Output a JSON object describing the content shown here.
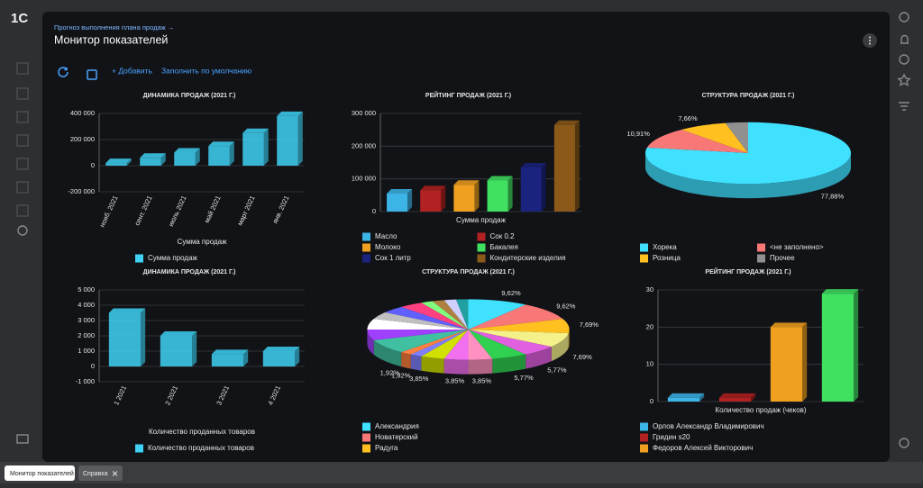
{
  "logo": "1С",
  "header": {
    "link": "Прогноз выполнения плана продаж →",
    "title": "Монитор показателей"
  },
  "toolbar": {
    "add": "+ Добавить",
    "fill": "Заполнить по умолчанию"
  },
  "tabs": [
    "Монитор показателей",
    "Справка"
  ],
  "panels": [
    {
      "type": "bar",
      "title": "ДИНАМИКА ПРОДАЖ (2021 Г.)",
      "categories": [
        "нояб. 2021",
        "сент. 2021",
        "июль 2021",
        "май 2021",
        "март 2021",
        "янв. 2021"
      ],
      "series": [
        {
          "name": "Сумма продаж",
          "color": "#3fd2f5",
          "values": [
            20000,
            60000,
            100000,
            150000,
            250000,
            380000
          ]
        }
      ],
      "ylim": [
        -200000,
        400000
      ],
      "yticks": [
        {
          "value": -200000,
          "label": "-200 000"
        },
        0,
        {
          "value": 200000,
          "label": "200 000"
        },
        {
          "value": 400000,
          "label": "400 000"
        }
      ],
      "xlabel": "Сумма продаж"
    },
    {
      "type": "bar",
      "title": "РЕЙТИНГ ПРОДАЖ (2021 Г.)",
      "categories": [
        "Масло",
        "Сок 0.2",
        "Молоко",
        "Бакалея",
        "Сок 1 литр",
        "Кондитерские изделия"
      ],
      "values": [
        55000,
        65000,
        82000,
        95000,
        135000,
        265000
      ],
      "colors": [
        "#3cb4e6",
        "#b22222",
        "#f0a020",
        "#40e060",
        "#1a237e",
        "#8b5a1a"
      ],
      "ylim": [
        0,
        300000
      ],
      "yticks": [
        0,
        {
          "value": 100000,
          "label": "100 000"
        },
        {
          "value": 200000,
          "label": "200 000"
        },
        {
          "value": 300000,
          "label": "300 000"
        }
      ],
      "xlabel": "Сумма продаж",
      "legend_columns": 2
    },
    {
      "type": "pie",
      "title": "СТРУКТУРА ПРОДАЖ (2021 Г.)",
      "categories": [
        "Хорека",
        "<не заполнено>",
        "Розница",
        "Прочее"
      ],
      "values": [
        77.88,
        10.91,
        7.66,
        3.55
      ],
      "value_labels": [
        "77,88%",
        "10,91%",
        "7,66%",
        null
      ],
      "colors": [
        "#40e0ff",
        "#f87878",
        "#ffc020",
        "#909090"
      ],
      "legend_columns": 2
    },
    {
      "type": "bar",
      "title": "ДИНАМИКА ПРОДАЖ (2021 Г.)",
      "categories": [
        "1 2021",
        "2 2021",
        "3 2021",
        "4 2021"
      ],
      "series": [
        {
          "name": "Количество проданных товаров",
          "color": "#3fd2f5",
          "values": [
            3500,
            2000,
            800,
            1000
          ]
        }
      ],
      "ylim": [
        -1000,
        5000
      ],
      "yticks": [
        {
          "value": -1000,
          "label": "-1 000"
        },
        0,
        {
          "value": 1000,
          "label": "1 000"
        },
        {
          "value": 2000,
          "label": "2 000"
        },
        {
          "value": 3000,
          "label": "3 000"
        },
        {
          "value": 4000,
          "label": "4 000"
        },
        {
          "value": 5000,
          "label": "5 000"
        }
      ],
      "xlabel": "Количество проданных товаров"
    },
    {
      "type": "pie",
      "title": "СТРУКТУРА ПРОДАЖ (2021 Г.)",
      "categories": [
        "Александрия",
        "Новатерский",
        "Радуга",
        null,
        null,
        null,
        null,
        null,
        null,
        null,
        null,
        null,
        null,
        null,
        null,
        null,
        null,
        null,
        null,
        null,
        null
      ],
      "values": [
        9.62,
        9.62,
        7.69,
        7.69,
        5.77,
        5.77,
        3.85,
        3.85,
        3.85,
        1.92,
        1.92,
        7.69,
        5.77,
        5.77,
        3.85,
        3.85,
        3.85,
        1.92,
        1.92,
        1.92,
        1.92
      ],
      "value_labels": [
        "9,62%",
        "9,62%",
        "7,69%",
        "7,69%",
        "5,77%",
        "5,77%",
        "3,85%",
        "3,85%",
        "3,85%",
        "1,92%",
        "1,92%",
        null,
        null,
        null,
        null,
        null,
        null,
        null,
        null,
        null,
        null
      ],
      "colors": [
        "#40e0ff",
        "#f87878",
        "#ffc020",
        "#f4f08a",
        "#e060e0",
        "#30d050",
        "#ff90c0",
        "#f070f0",
        "#d0e000",
        "#8080ff",
        "#ff8040",
        "#40c0a0",
        "#a040ff",
        "#ffffff",
        "#c0c0c0",
        "#6060ff",
        "#ff4080",
        "#80ff80",
        "#b08040",
        "#d0d0ff",
        "#20a0a0"
      ]
    },
    {
      "type": "bar",
      "title": "РЕЙТИНГ ПРОДАЖ (2021 Г.)",
      "categories": [
        "Орлов Александр Владимирович",
        "Гридин s20",
        "Федоров Алексей Викторович",
        null
      ],
      "values": [
        1,
        1,
        20,
        29
      ],
      "colors": [
        "#3cb4e6",
        "#b22222",
        "#f0a020",
        "#40e060"
      ],
      "ylim": [
        0,
        30
      ],
      "yticks": [
        0,
        10,
        20,
        30
      ],
      "xlabel": "Количество продаж (чеков)"
    }
  ]
}
